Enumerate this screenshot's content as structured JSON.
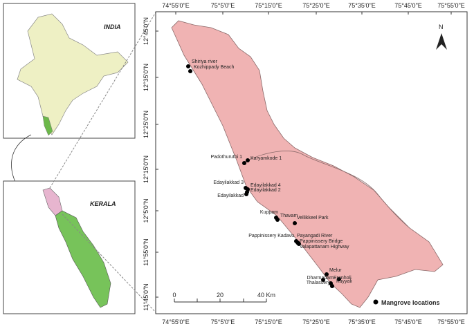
{
  "insets": {
    "india": "INDIA",
    "kerala": "KERALA"
  },
  "north": "N",
  "longitude_labels": [
    "74°55'0\"E",
    "75°5'0\"E",
    "75°15'0\"E",
    "75°25'0\"E",
    "75°35'0\"E",
    "75°45'0\"E",
    "75°55'0\"E"
  ],
  "latitude_labels": [
    "12°45'0\"N",
    "12°35'0\"N",
    "12°25'0\"N",
    "12°15'0\"N",
    "12°5'0\"N",
    "11°55'0\"N",
    "11°45'0\"N"
  ],
  "scale_bar": [
    "0",
    "20",
    "40 Km"
  ],
  "legend": "Mangrove locations",
  "sites": [
    "Shiriya river",
    "Kozhippady Beach",
    "Padothuruthi 1",
    "Karyamkode 1",
    "Edayilakkad 3",
    "Edayilakkad 4",
    "Edayilakkad 2",
    "Edayilakkad",
    "Kuppam",
    "Thavam",
    "Vellikkeel Park",
    "Pappinissery Kadavu",
    "Payangadi River",
    "Pappinissery Bridge",
    "Valapattanam Highway",
    "Melur",
    "Dharmadam",
    "Eranholi",
    "Kuyyali",
    "Thalassery"
  ]
}
